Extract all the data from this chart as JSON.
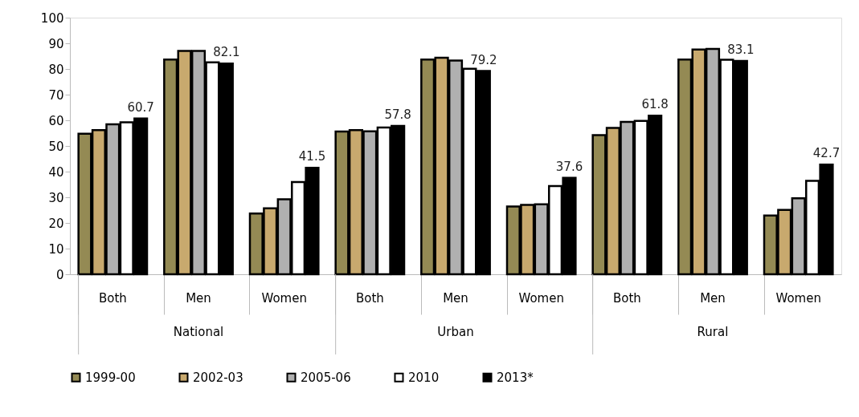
{
  "chart_data": {
    "type": "bar",
    "categories": [
      "Both",
      "Men",
      "Women",
      "Both",
      "Men",
      "Women",
      "Both",
      "Men",
      "Women"
    ],
    "annotations": [
      "National",
      "Urban",
      "Rural"
    ],
    "series": [
      {
        "name": "1999-00",
        "color": "#948a54",
        "values": [
          54.8,
          83.7,
          23.7,
          55.6,
          83.7,
          26.4,
          54.2,
          83.7,
          22.9
        ]
      },
      {
        "name": "2002-03",
        "color": "#c8a96e",
        "values": [
          56.2,
          87.0,
          25.7,
          56.2,
          84.4,
          27.0,
          57.0,
          87.6,
          25.1
        ]
      },
      {
        "name": "2005-06",
        "color": "#b0b0b0",
        "values": [
          58.4,
          87.0,
          29.2,
          55.7,
          83.3,
          27.3,
          59.4,
          87.8,
          29.6
        ]
      },
      {
        "name": "2010",
        "color": "#ffffff",
        "values": [
          59.2,
          82.6,
          35.9,
          57.2,
          80.1,
          34.4,
          59.8,
          83.6,
          36.4
        ]
      },
      {
        "name": "2013*",
        "color": "#000000",
        "values": [
          60.7,
          82.1,
          41.5,
          57.8,
          79.2,
          37.6,
          61.8,
          83.1,
          42.7
        ],
        "value_labels": [
          "60.7",
          "82.1",
          "41.5",
          "57.8",
          "79.2",
          "37.6",
          "61.8",
          "83.1",
          "42.7"
        ]
      }
    ],
    "ylim": [
      0,
      100
    ],
    "yticks": [
      0,
      10,
      20,
      30,
      40,
      50,
      60,
      70,
      80,
      90,
      100
    ],
    "grid": false,
    "legend": "bottom"
  }
}
